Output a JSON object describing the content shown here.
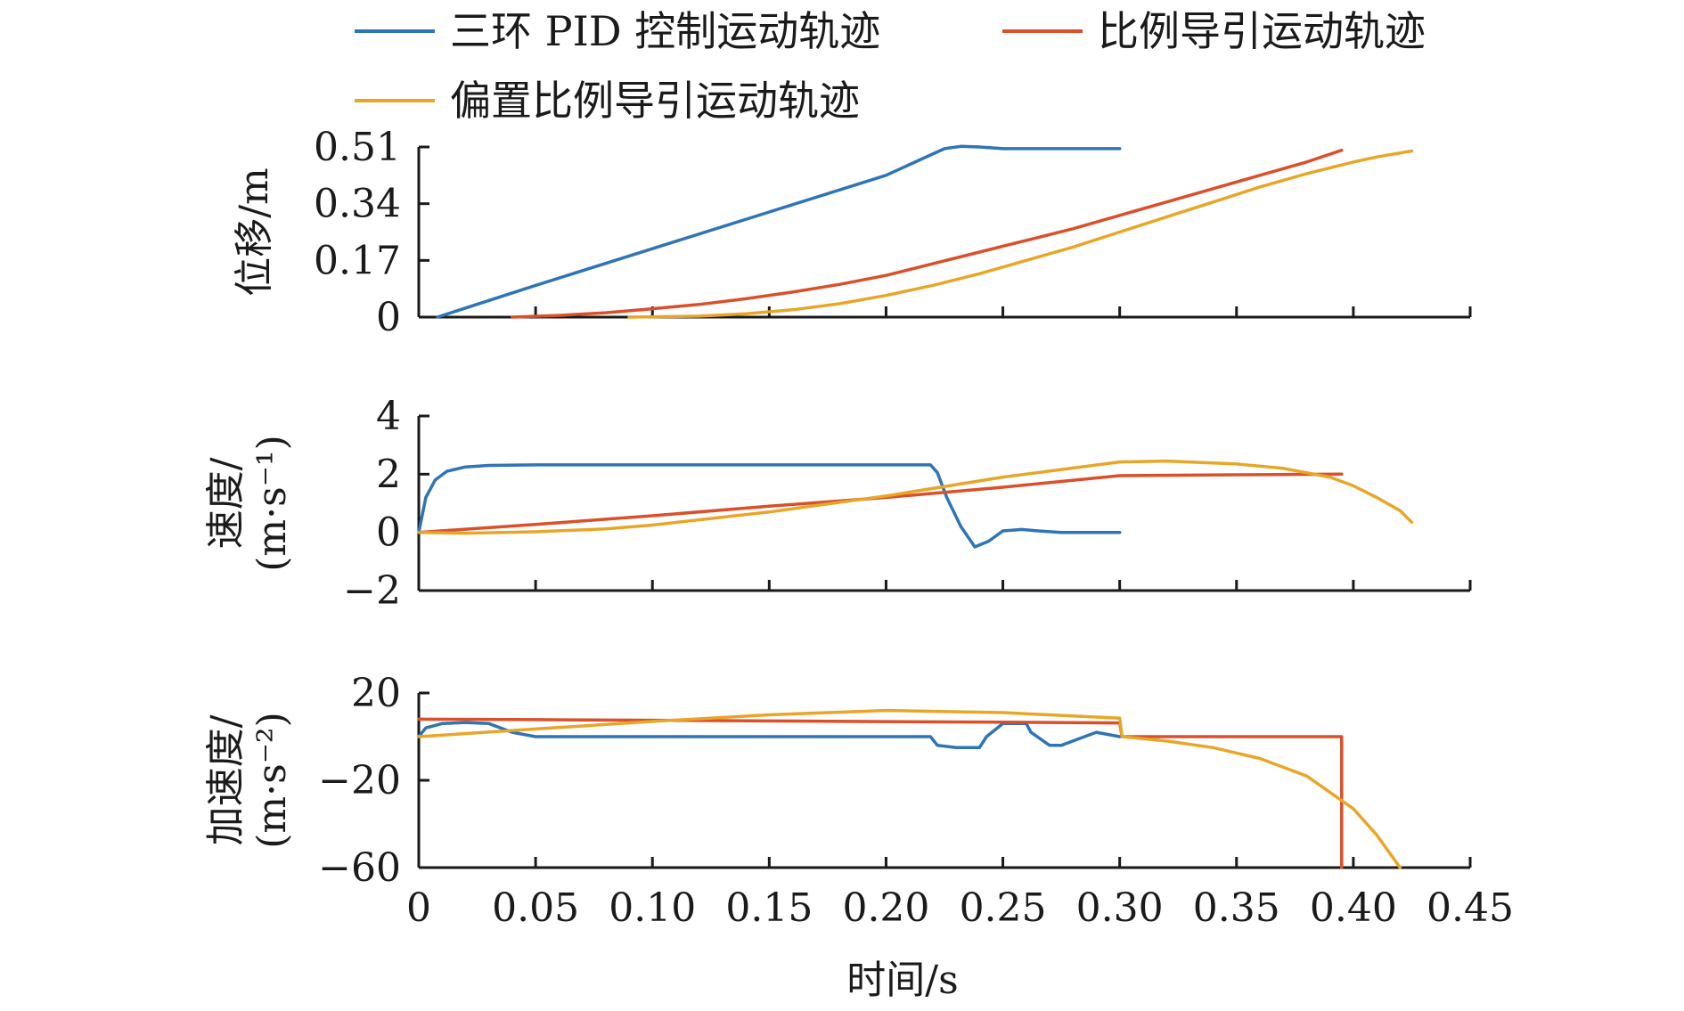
{
  "chart_data": {
    "type": "line",
    "legend": {
      "placement": "top",
      "entries": [
        {
          "name": "三环 PID 控制运动轨迹",
          "color": "#2f74b5"
        },
        {
          "name": "比例导引运动轨迹",
          "color": "#d9502a"
        },
        {
          "name": "偏置比例导引运动轨迹",
          "color": "#e8a628"
        }
      ]
    },
    "x": {
      "label": "时间/s",
      "lim": [
        0,
        0.45
      ],
      "ticks": [
        0,
        0.05,
        0.1,
        0.15,
        0.2,
        0.25,
        0.3,
        0.35,
        0.4,
        0.45
      ],
      "tick_labels": [
        "0",
        "0.05",
        "0.10",
        "0.15",
        "0.20",
        "0.25",
        "0.30",
        "0.35",
        "0.40",
        "0.45"
      ]
    },
    "panels": [
      {
        "ylabel": "位移/m",
        "ylabel_lines": [
          "位移/m"
        ],
        "ylim": [
          0,
          0.51
        ],
        "yticks": [
          0,
          0.17,
          0.34,
          0.51
        ],
        "ytick_labels": [
          "0",
          "0.17",
          "0.34",
          "0.51"
        ],
        "series": [
          {
            "name": "三环 PID 控制运动轨迹",
            "color": "#2f74b5",
            "x": [
              0.008,
              0.05,
              0.1,
              0.15,
              0.2,
              0.225,
              0.232,
              0.24,
              0.25,
              0.27,
              0.3
            ],
            "y": [
              0,
              0.095,
              0.205,
              0.315,
              0.425,
              0.505,
              0.512,
              0.51,
              0.505,
              0.505,
              0.505
            ]
          },
          {
            "name": "比例导引运动轨迹",
            "color": "#d9502a",
            "x": [
              0.04,
              0.06,
              0.08,
              0.1,
              0.12,
              0.14,
              0.16,
              0.18,
              0.2,
              0.22,
              0.24,
              0.26,
              0.28,
              0.3,
              0.32,
              0.34,
              0.36,
              0.38,
              0.395
            ],
            "y": [
              0,
              0.005,
              0.013,
              0.025,
              0.038,
              0.055,
              0.075,
              0.098,
              0.125,
              0.16,
              0.195,
              0.23,
              0.265,
              0.305,
              0.345,
              0.385,
              0.425,
              0.465,
              0.5
            ]
          },
          {
            "name": "偏置比例导引运动轨迹",
            "color": "#e8a628",
            "x": [
              0.09,
              0.12,
              0.14,
              0.16,
              0.18,
              0.2,
              0.22,
              0.24,
              0.26,
              0.28,
              0.3,
              0.32,
              0.34,
              0.36,
              0.38,
              0.4,
              0.41,
              0.425
            ],
            "y": [
              0,
              0.003,
              0.01,
              0.022,
              0.04,
              0.065,
              0.095,
              0.13,
              0.17,
              0.21,
              0.255,
              0.3,
              0.345,
              0.39,
              0.43,
              0.465,
              0.48,
              0.498
            ]
          }
        ]
      },
      {
        "ylabel": "速度/(m·s⁻¹)",
        "ylabel_lines": [
          "速度/",
          "(m·s⁻¹)"
        ],
        "ylim": [
          -2,
          4
        ],
        "yticks": [
          -2,
          0,
          2,
          4
        ],
        "ytick_labels": [
          "−2",
          "0",
          "2",
          "4"
        ],
        "series": [
          {
            "name": "三环 PID 控制运动轨迹",
            "color": "#2f74b5",
            "x": [
              0,
              0.003,
              0.007,
              0.012,
              0.02,
              0.03,
              0.05,
              0.1,
              0.15,
              0.2,
              0.219,
              0.222,
              0.226,
              0.232,
              0.238,
              0.244,
              0.25,
              0.258,
              0.265,
              0.275,
              0.285,
              0.3
            ],
            "y": [
              0,
              1.2,
              1.8,
              2.1,
              2.25,
              2.3,
              2.32,
              2.32,
              2.32,
              2.32,
              2.32,
              2.05,
              1.2,
              0.2,
              -0.5,
              -0.3,
              0.05,
              0.1,
              0.05,
              0.0,
              0.0,
              0.0
            ]
          },
          {
            "name": "比例导引运动轨迹",
            "color": "#d9502a",
            "x": [
              0,
              0.05,
              0.1,
              0.15,
              0.2,
              0.25,
              0.3,
              0.35,
              0.395
            ],
            "y": [
              0,
              0.27,
              0.57,
              0.9,
              1.2,
              1.55,
              1.95,
              1.98,
              2.0
            ]
          },
          {
            "name": "偏置比例导引运动轨迹",
            "color": "#e8a628",
            "x": [
              0,
              0.02,
              0.05,
              0.08,
              0.1,
              0.15,
              0.2,
              0.25,
              0.3,
              0.32,
              0.35,
              0.37,
              0.39,
              0.4,
              0.41,
              0.42,
              0.425
            ],
            "y": [
              0,
              -0.03,
              0.02,
              0.12,
              0.25,
              0.7,
              1.25,
              1.9,
              2.42,
              2.45,
              2.35,
              2.2,
              1.9,
              1.6,
              1.2,
              0.75,
              0.35
            ]
          }
        ]
      },
      {
        "ylabel": "加速度/(m·s⁻²)",
        "ylabel_lines": [
          "加速度/",
          "(m·s⁻²)"
        ],
        "ylim": [
          -60,
          20
        ],
        "yticks": [
          -60,
          -20,
          20
        ],
        "ytick_labels": [
          "−60",
          "−20",
          "20"
        ],
        "series": [
          {
            "name": "三环 PID 控制运动轨迹",
            "color": "#2f74b5",
            "x": [
              0,
              0.003,
              0.01,
              0.02,
              0.03,
              0.04,
              0.05,
              0.1,
              0.15,
              0.2,
              0.219,
              0.222,
              0.23,
              0.24,
              0.243,
              0.25,
              0.26,
              0.262,
              0.27,
              0.275,
              0.28,
              0.29,
              0.3
            ],
            "y": [
              0,
              4,
              6,
              6.5,
              6,
              2,
              0,
              0,
              0,
              0,
              0,
              -4,
              -5,
              -5,
              0,
              6,
              6,
              2,
              -4,
              -4,
              -2,
              2,
              0
            ]
          },
          {
            "name": "比例导引运动轨迹",
            "color": "#d9502a",
            "x": [
              0,
              0.05,
              0.1,
              0.15,
              0.2,
              0.25,
              0.3,
              0.301,
              0.35,
              0.395,
              0.395
            ],
            "y": [
              8,
              7.8,
              7.5,
              7.2,
              6.9,
              6.6,
              6.3,
              0,
              0,
              0,
              -60
            ]
          },
          {
            "name": "偏置比例导引运动轨迹",
            "color": "#e8a628",
            "x": [
              0,
              0.05,
              0.1,
              0.15,
              0.2,
              0.25,
              0.3,
              0.301,
              0.32,
              0.34,
              0.36,
              0.38,
              0.4,
              0.41,
              0.42
            ],
            "y": [
              0,
              3.5,
              7,
              10,
              12,
              11,
              8.5,
              0,
              -2,
              -5,
              -10,
              -18,
              -33,
              -45,
              -60
            ]
          }
        ]
      }
    ]
  }
}
